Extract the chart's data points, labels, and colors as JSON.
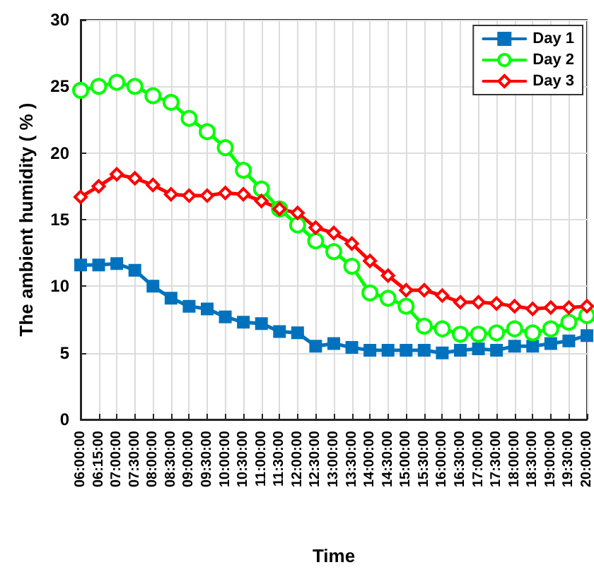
{
  "chart_data": {
    "type": "line",
    "xlabel": "Time",
    "ylabel": "The ambient humidity ( % )",
    "categories": [
      "06:00:00",
      "06:15:00",
      "07:00:00",
      "07:30:00",
      "08:00:00",
      "08:30:00",
      "09:00:00",
      "09:30:00",
      "10:00:00",
      "10:30:00",
      "11:00:00",
      "11:30:00",
      "12:00:00",
      "12:30:00",
      "13:00:00",
      "13:30:00",
      "14:00:00",
      "14:30:00",
      "15:00:00",
      "15:30:00",
      "16:00:00",
      "16:30:00",
      "17:00:00",
      "17:30:00",
      "18:00:00",
      "18:30:00",
      "19:00:00",
      "19:30:00",
      "20:00:00"
    ],
    "series": [
      {
        "name": "Day 1",
        "color": "#0072bd",
        "marker": "square",
        "values": [
          11.6,
          11.6,
          11.7,
          11.2,
          10.0,
          9.1,
          8.5,
          8.3,
          7.7,
          7.3,
          7.2,
          6.6,
          6.5,
          5.5,
          5.7,
          5.4,
          5.2,
          5.2,
          5.2,
          5.2,
          5.0,
          5.2,
          5.3,
          5.2,
          5.5,
          5.5,
          5.7,
          5.9,
          6.3
        ]
      },
      {
        "name": "Day 2",
        "color": "#00ff00",
        "marker": "circle",
        "values": [
          24.7,
          25.0,
          25.3,
          25.0,
          24.3,
          23.8,
          22.6,
          21.6,
          20.4,
          18.7,
          17.3,
          15.8,
          14.6,
          13.4,
          12.6,
          11.5,
          9.5,
          9.1,
          8.5,
          7.0,
          6.8,
          6.4,
          6.4,
          6.5,
          6.8,
          6.5,
          6.8,
          7.3,
          7.8
        ]
      },
      {
        "name": "Day 3",
        "color": "#ff0000",
        "marker": "diamond",
        "values": [
          16.7,
          17.5,
          18.4,
          18.1,
          17.6,
          16.9,
          16.8,
          16.8,
          17.0,
          16.9,
          16.4,
          15.8,
          15.5,
          14.4,
          14.0,
          13.2,
          11.9,
          10.8,
          9.7,
          9.7,
          9.3,
          8.8,
          8.8,
          8.7,
          8.5,
          8.3,
          8.4,
          8.4,
          8.5
        ]
      }
    ],
    "ylim": [
      0,
      30
    ],
    "yticks": [
      0,
      5,
      10,
      15,
      20,
      25,
      30
    ],
    "grid": true,
    "legend": "top right",
    "line_style": "solid"
  }
}
